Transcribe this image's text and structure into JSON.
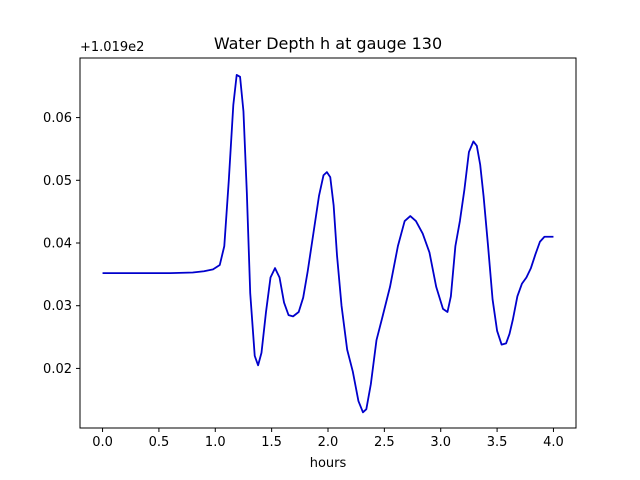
{
  "chart_data": {
    "type": "line",
    "title": "Water Depth h at gauge 130",
    "xlabel": "hours",
    "ylabel": "",
    "offset_label": "+1.019e2",
    "xlim": [
      -0.2,
      4.2
    ],
    "ylim": [
      0.0105,
      0.0695
    ],
    "xticks": [
      0.0,
      0.5,
      1.0,
      1.5,
      2.0,
      2.5,
      3.0,
      3.5,
      4.0
    ],
    "xtick_labels": [
      "0.0",
      "0.5",
      "1.0",
      "1.5",
      "2.0",
      "2.5",
      "3.0",
      "3.5",
      "4.0"
    ],
    "yticks": [
      0.02,
      0.03,
      0.04,
      0.05,
      0.06
    ],
    "ytick_labels": [
      "0.02",
      "0.03",
      "0.04",
      "0.05",
      "0.06"
    ],
    "grid": false,
    "series": [
      {
        "color": "#0000cc",
        "x": [
          0.0,
          0.3,
          0.6,
          0.8,
          0.9,
          0.98,
          1.04,
          1.08,
          1.12,
          1.16,
          1.19,
          1.22,
          1.25,
          1.28,
          1.31,
          1.35,
          1.38,
          1.41,
          1.45,
          1.49,
          1.53,
          1.57,
          1.61,
          1.65,
          1.69,
          1.74,
          1.78,
          1.82,
          1.87,
          1.92,
          1.96,
          1.99,
          2.02,
          2.05,
          2.08,
          2.12,
          2.17,
          2.22,
          2.27,
          2.31,
          2.34,
          2.38,
          2.43,
          2.48,
          2.55,
          2.62,
          2.68,
          2.73,
          2.78,
          2.84,
          2.9,
          2.96,
          3.02,
          3.06,
          3.09,
          3.13,
          3.17,
          3.21,
          3.25,
          3.29,
          3.32,
          3.35,
          3.38,
          3.42,
          3.46,
          3.5,
          3.54,
          3.58,
          3.61,
          3.64,
          3.68,
          3.72,
          3.76,
          3.8,
          3.84,
          3.88,
          3.92,
          3.95,
          3.98,
          4.0
        ],
        "y": [
          0.0352,
          0.0352,
          0.0352,
          0.0353,
          0.0355,
          0.0358,
          0.0365,
          0.0395,
          0.05,
          0.062,
          0.0668,
          0.0665,
          0.061,
          0.048,
          0.032,
          0.022,
          0.0205,
          0.0225,
          0.029,
          0.0345,
          0.036,
          0.0345,
          0.0305,
          0.0285,
          0.0283,
          0.029,
          0.0313,
          0.0355,
          0.0415,
          0.0475,
          0.0508,
          0.0513,
          0.0505,
          0.046,
          0.038,
          0.03,
          0.023,
          0.0195,
          0.0148,
          0.013,
          0.0135,
          0.0175,
          0.0245,
          0.028,
          0.033,
          0.0395,
          0.0435,
          0.0443,
          0.0435,
          0.0415,
          0.0385,
          0.033,
          0.0295,
          0.029,
          0.0315,
          0.0395,
          0.0435,
          0.0485,
          0.0545,
          0.0562,
          0.0555,
          0.0525,
          0.0475,
          0.0395,
          0.031,
          0.026,
          0.0238,
          0.024,
          0.0255,
          0.0278,
          0.0315,
          0.0335,
          0.0345,
          0.036,
          0.0382,
          0.0402,
          0.041,
          0.041,
          0.041,
          0.041
        ]
      }
    ]
  }
}
